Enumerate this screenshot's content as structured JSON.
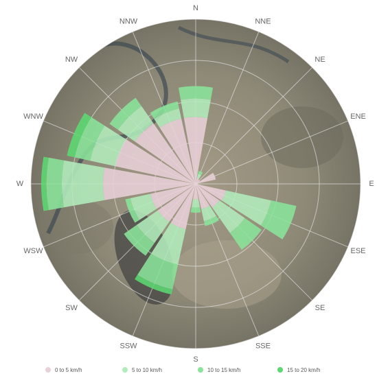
{
  "chart_data": {
    "type": "windrose",
    "directions": [
      "N",
      "NNE",
      "NE",
      "ENE",
      "E",
      "ESE",
      "SE",
      "SSE",
      "S",
      "SSW",
      "SW",
      "WSW",
      "W",
      "WNW",
      "NW",
      "NNW"
    ],
    "series": [
      {
        "name": "0 to 5 km/h",
        "color": "#e8d0d8",
        "values": [
          6.5,
          0.6,
          0.5,
          2.0,
          0.2,
          3.0,
          2.8,
          2.5,
          1.5,
          4.5,
          4.5,
          4.5,
          9.0,
          8.0,
          7.2,
          6.5
        ]
      },
      {
        "name": "5 to 10 km/h",
        "color": "#b2ecbc",
        "values": [
          1.8,
          0.4,
          0.0,
          0.0,
          0.0,
          4.5,
          3.0,
          1.2,
          0.8,
          3.5,
          2.5,
          2.0,
          4.0,
          2.5,
          2.0,
          1.0
        ]
      },
      {
        "name": "10 to 15 km/h",
        "color": "#8ae49a",
        "values": [
          1.2,
          0.3,
          0.0,
          0.0,
          0.0,
          2.5,
          2.0,
          0.5,
          0.5,
          2.5,
          1.5,
          0.5,
          1.5,
          1.5,
          1.0,
          0.7
        ]
      },
      {
        "name": "15 to 20 km/h",
        "color": "#5cd872",
        "values": [
          0.0,
          0.0,
          0.0,
          0.0,
          0.0,
          0.0,
          0.0,
          0.0,
          0.0,
          0.5,
          0.0,
          0.0,
          0.5,
          0.8,
          0.0,
          0.0
        ]
      }
    ],
    "rmax": 16,
    "ring_count": 4,
    "grid": true,
    "legend_position": "bottom"
  }
}
